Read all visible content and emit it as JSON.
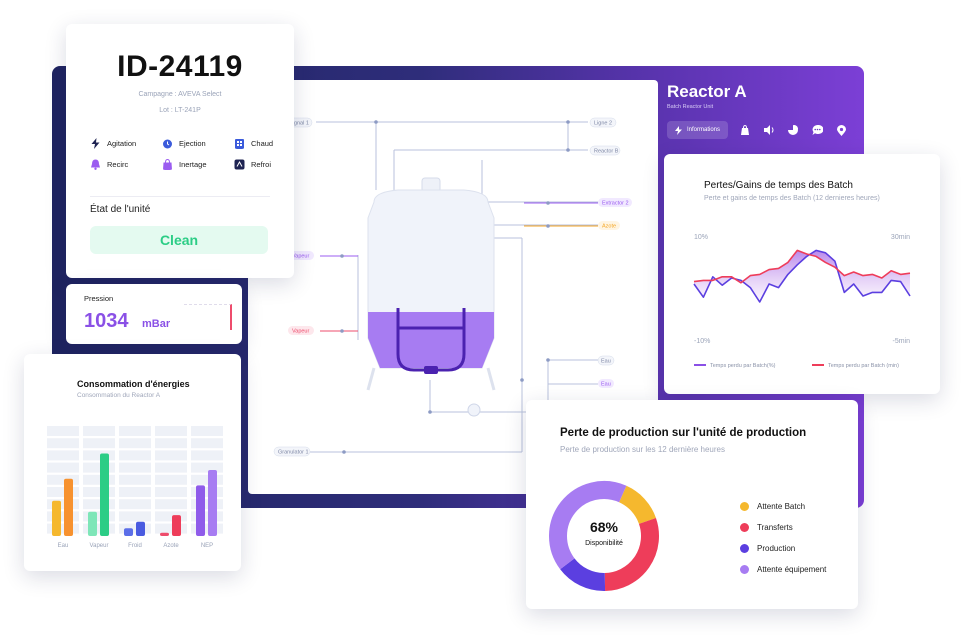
{
  "unit_card": {
    "id": "ID-24119",
    "campaign": "Campagne : AVEVA Select",
    "lot": "Lot : LT-241P",
    "actions": [
      {
        "label": "Agitation",
        "icon": "lightning-icon",
        "color": "#1e2352"
      },
      {
        "label": "Ejection",
        "icon": "alarm-icon",
        "color": "#3b5bdb"
      },
      {
        "label": "Chaud",
        "icon": "building-icon",
        "color": "#3b5bdb"
      },
      {
        "label": "Recirc",
        "icon": "bell-icon",
        "color": "#9b5cf0"
      },
      {
        "label": "Inertage",
        "icon": "bag-icon",
        "color": "#9b5cf0"
      },
      {
        "label": "Refroi",
        "icon": "shield-icon",
        "color": "#1e2352"
      }
    ],
    "state_label": "État de l'unité",
    "state_value": "Clean"
  },
  "pressure": {
    "label": "Pression",
    "value": "1034",
    "unit": "mBar"
  },
  "energy": {
    "title": "Consommation d'énergies",
    "subtitle": "Consommation du Reactor A"
  },
  "diagram": {
    "labels": {
      "signal": "Signal 1",
      "ligne": "Ligne 2",
      "reactor_b": "Reactor B",
      "extractor": "Extractor 2",
      "azote": "Azote",
      "vapeur1": "Vapeur",
      "vapeur2": "Vapeur",
      "eau1": "Eau",
      "eau2": "Eau",
      "granulator": "Granulator 1"
    },
    "colors": {
      "extractor": "#9b5cf0",
      "azote": "#f5a623",
      "vapeur1": "#9b5cf0",
      "vapeur2": "#ee4c6c",
      "eau2": "#9b5cf0"
    }
  },
  "reactor": {
    "title": "Reactor A",
    "subtitle": "Batch Reactor Unit",
    "info_button": "Informations",
    "toolbar_icons": [
      "lightning-icon",
      "bag-icon",
      "speaker-icon",
      "pie-icon",
      "chat-icon",
      "location-icon"
    ]
  },
  "batch_losses": {
    "title": "Pertes/Gains de temps des Batch",
    "subtitle": "Perte et gains de temps des Batch (12 dernieres heures)",
    "axis": {
      "left_top": "10%",
      "right_top": "30min",
      "left_bottom": "-10%",
      "right_bottom": "-5min"
    },
    "legend_percent": "Temps perdu par Batch(%)",
    "legend_min": "Temps perdu par Batch (min)",
    "colors": {
      "percent": "#5b3fe0",
      "min": "#ee3d5a",
      "fill": "#b07ae8"
    }
  },
  "production_loss": {
    "title": "Perte de production sur l'unité de production",
    "subtitle": "Perte de production sur les 12 dernière heures",
    "center_value": "68%",
    "center_label": "Disponibilité",
    "legend": [
      {
        "label": "Attente Batch",
        "color": "#f5b82e"
      },
      {
        "label": "Transferts",
        "color": "#ee3d5a"
      },
      {
        "label": "Production",
        "color": "#5b3fe0"
      },
      {
        "label": "Attente équipement",
        "color": "#a77cf2"
      }
    ]
  },
  "chart_data": [
    {
      "type": "bar",
      "title": "Consommation d'énergies",
      "subtitle": "Consommation du Reactor A",
      "categories": [
        "Eau",
        "Vapeur",
        "Froid",
        "Azote",
        "NEP"
      ],
      "ylim": [
        0,
        100
      ],
      "grid": true,
      "series": [
        {
          "color": "#f5b82e",
          "values": [
            32,
            0,
            0,
            0,
            0
          ]
        },
        {
          "color": "#f7922f",
          "values": [
            52,
            0,
            0,
            0,
            0
          ]
        },
        {
          "color": "#7ee6b8",
          "values": [
            0,
            22,
            0,
            0,
            0
          ]
        },
        {
          "color": "#2ccd86",
          "values": [
            0,
            75,
            0,
            0,
            0
          ]
        },
        {
          "color": "#5b6ee8",
          "values": [
            0,
            0,
            7,
            0,
            0
          ]
        },
        {
          "color": "#4a5be0",
          "values": [
            0,
            0,
            13,
            0,
            0
          ]
        },
        {
          "color": "#ee4c6c",
          "values": [
            0,
            0,
            0,
            3,
            0
          ]
        },
        {
          "color": "#ee3d5a",
          "values": [
            0,
            0,
            0,
            19,
            0
          ]
        },
        {
          "color": "#8f5bea",
          "values": [
            0,
            0,
            0,
            0,
            46
          ]
        },
        {
          "color": "#a77cf2",
          "values": [
            0,
            0,
            0,
            0,
            60
          ]
        }
      ]
    },
    {
      "type": "line",
      "title": "Pertes/Gains de temps des Batch",
      "x": [
        1,
        2,
        3,
        4,
        5,
        6,
        7,
        8,
        9,
        10,
        11,
        12,
        13,
        14,
        15,
        16,
        17,
        18,
        19,
        20,
        21,
        22,
        23,
        24
      ],
      "series": [
        {
          "name": "Temps perdu par Batch(%)",
          "color": "#5b3fe0",
          "values": [
            1.0,
            -1.2,
            2.2,
            0.8,
            2.0,
            1.6,
            0.4,
            -2.0,
            1.0,
            0.4,
            2.6,
            4.2,
            5.6,
            6.6,
            6.2,
            4.8,
            -0.4,
            1.0,
            -1.0,
            -0.4,
            -0.4,
            1.6,
            1.4,
            -1.0
          ]
        },
        {
          "name": "Temps perdu par Batch (min)",
          "color": "#ee3d5a",
          "values": [
            1.4,
            1.6,
            1.6,
            2.2,
            2.2,
            1.2,
            2.4,
            2.6,
            3.4,
            3.6,
            4.6,
            6.6,
            6.0,
            5.6,
            4.6,
            3.8,
            2.4,
            3.0,
            2.4,
            2.6,
            2.0,
            3.2,
            2.6,
            2.8
          ]
        }
      ]
    },
    {
      "type": "pie",
      "title": "Perte de production sur l'unité de production",
      "categories": [
        "Attente Batch",
        "Transferts",
        "Production",
        "Attente équipement"
      ],
      "values": [
        13,
        30,
        15,
        42
      ]
    }
  ]
}
